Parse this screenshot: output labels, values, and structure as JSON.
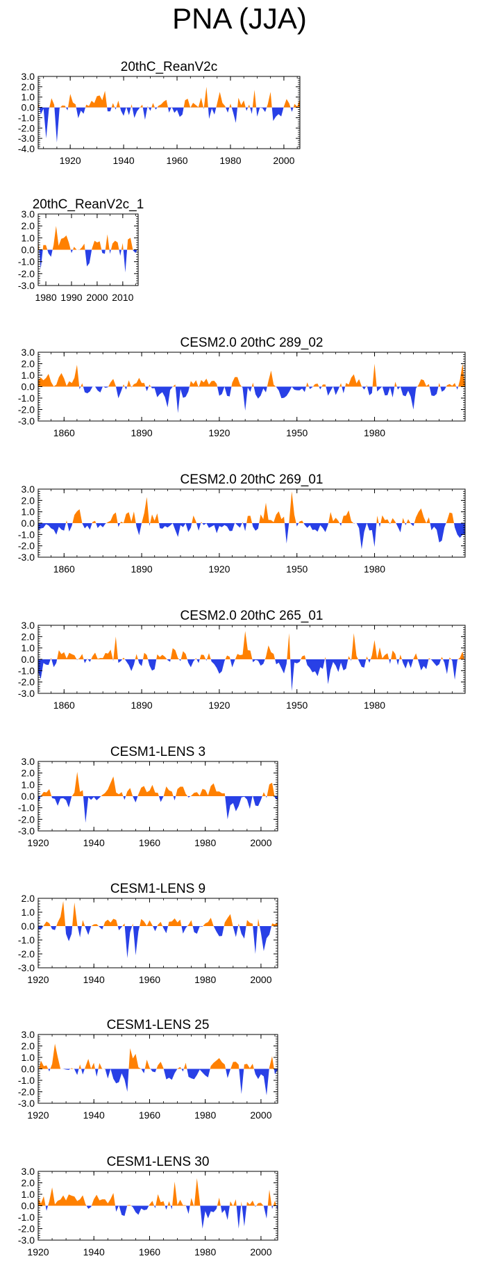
{
  "page": {
    "title": "PNA (JJA)"
  },
  "colors": {
    "positive": "#ff8000",
    "negative": "#2840e6",
    "axis": "#000000",
    "background": "#ffffff"
  },
  "chart_data": [
    {
      "type": "area",
      "title": "20thC_ReanV2c",
      "x_range": [
        1908,
        2006
      ],
      "ylim": [
        -4.0,
        3.0
      ],
      "y_ticks": [
        3.0,
        2.0,
        1.0,
        0.0,
        -1.0,
        -2.0,
        -3.0,
        -4.0
      ],
      "y_tick_labels": [
        "3.0",
        "2.0",
        "1.0",
        "0.0",
        "-1.0",
        "-2.0",
        "-3.0",
        "-4.0"
      ],
      "x_ticks": [
        1920,
        1940,
        1960,
        1980,
        2000
      ],
      "x_tick_labels": [
        "1920",
        "1940",
        "1960",
        "1980",
        "2000"
      ],
      "seed": 11,
      "amp": 1.15,
      "bias": 0.0,
      "anchors": [
        [
          1911,
          -3.0
        ],
        [
          1915,
          -3.4
        ],
        [
          1920,
          1.3
        ],
        [
          1933,
          1.6
        ],
        [
          1948,
          -1.2
        ],
        [
          1971,
          2.0
        ],
        [
          1976,
          1.5
        ],
        [
          1982,
          -1.5
        ],
        [
          1989,
          1.7
        ],
        [
          1995,
          1.5
        ]
      ]
    },
    {
      "type": "area",
      "title": "20thC_ReanV2c_1",
      "x_range": [
        1977,
        2016
      ],
      "ylim": [
        -3.0,
        3.0
      ],
      "y_ticks": [
        3.0,
        2.0,
        1.0,
        0.0,
        -1.0,
        -2.0,
        -3.0
      ],
      "y_tick_labels": [
        "3.0",
        "2.0",
        "1.0",
        "0.0",
        "-1.0",
        "-2.0",
        "-3.0"
      ],
      "x_ticks": [
        1980,
        1990,
        2000,
        2010
      ],
      "x_tick_labels": [
        "1980",
        "1990",
        "2000",
        "2010"
      ],
      "seed": 23,
      "amp": 1.0,
      "bias": 0.0,
      "anchors": [
        [
          1978,
          -1.6
        ],
        [
          1984,
          2.0
        ],
        [
          1988,
          1.2
        ],
        [
          1996,
          -1.4
        ],
        [
          2004,
          1.3
        ],
        [
          2011,
          -1.9
        ],
        [
          2013,
          1.0
        ]
      ]
    },
    {
      "type": "area",
      "title": "CESM2.0 20thC 289_02",
      "x_range": [
        1850,
        2015
      ],
      "ylim": [
        -3.0,
        3.0
      ],
      "y_ticks": [
        3.0,
        2.0,
        1.0,
        0.0,
        -1.0,
        -2.0,
        -3.0
      ],
      "y_tick_labels": [
        "3.0",
        "2.0",
        "1.0",
        "0.0",
        "-1.0",
        "-2.0",
        "-3.0"
      ],
      "x_ticks": [
        1860,
        1890,
        1920,
        1950,
        1980
      ],
      "x_tick_labels": [
        "1860",
        "1890",
        "1920",
        "1950",
        "1980"
      ],
      "seed": 37,
      "amp": 1.0,
      "bias": 0.0,
      "anchors": [
        [
          1865,
          1.9
        ],
        [
          1900,
          -1.8
        ],
        [
          1904,
          -2.3
        ],
        [
          1930,
          -2.1
        ],
        [
          1940,
          1.4
        ],
        [
          1980,
          2.0
        ],
        [
          1995,
          -2.0
        ],
        [
          2014,
          2.0
        ]
      ]
    },
    {
      "type": "area",
      "title": "CESM2.0 20thC 269_01",
      "x_range": [
        1850,
        2015
      ],
      "ylim": [
        -3.0,
        3.0
      ],
      "y_ticks": [
        3.0,
        2.0,
        1.0,
        0.0,
        -1.0,
        -2.0,
        -3.0
      ],
      "y_tick_labels": [
        "3.0",
        "2.0",
        "1.0",
        "0.0",
        "-1.0",
        "-2.0",
        "-3.0"
      ],
      "x_ticks": [
        1860,
        1890,
        1920,
        1950,
        1980
      ],
      "x_tick_labels": [
        "1860",
        "1890",
        "1920",
        "1950",
        "1980"
      ],
      "seed": 53,
      "amp": 1.05,
      "bias": 0.0,
      "anchors": [
        [
          1892,
          2.3
        ],
        [
          1938,
          1.8
        ],
        [
          1948,
          2.8
        ],
        [
          1946,
          -1.8
        ],
        [
          1975,
          -2.3
        ],
        [
          1980,
          -2.1
        ],
        [
          2005,
          -1.7
        ]
      ]
    },
    {
      "type": "area",
      "title": "CESM2.0 20thC 265_01",
      "x_range": [
        1850,
        2015
      ],
      "ylim": [
        -3.0,
        3.0
      ],
      "y_ticks": [
        3.0,
        2.0,
        1.0,
        0.0,
        -1.0,
        -2.0,
        -3.0
      ],
      "y_tick_labels": [
        "3.0",
        "2.0",
        "1.0",
        "0.0",
        "-1.0",
        "-2.0",
        "-3.0"
      ],
      "x_ticks": [
        1860,
        1890,
        1920,
        1950,
        1980
      ],
      "x_tick_labels": [
        "1860",
        "1890",
        "1920",
        "1950",
        "1980"
      ],
      "seed": 71,
      "amp": 1.1,
      "bias": 0.0,
      "anchors": [
        [
          1880,
          2.0
        ],
        [
          1930,
          2.5
        ],
        [
          1948,
          -2.8
        ],
        [
          1947,
          2.3
        ],
        [
          1962,
          -2.2
        ],
        [
          1972,
          2.3
        ],
        [
          1980,
          1.7
        ],
        [
          2011,
          -1.8
        ]
      ]
    },
    {
      "type": "area",
      "title": "CESM1-LENS 3",
      "x_range": [
        1920,
        2006
      ],
      "ylim": [
        -3.0,
        3.0
      ],
      "y_ticks": [
        3.0,
        2.0,
        1.0,
        0.0,
        -1.0,
        -2.0,
        -3.0
      ],
      "y_tick_labels": [
        "3.0",
        "2.0",
        "1.0",
        "0.0",
        "-1.0",
        "-2.0",
        "-3.0"
      ],
      "x_ticks": [
        1920,
        1940,
        1960,
        1980,
        2000
      ],
      "x_tick_labels": [
        "1920",
        "1940",
        "1960",
        "1980",
        "2000"
      ],
      "seed": 89,
      "amp": 1.0,
      "bias": 0.15,
      "anchors": [
        [
          1934,
          2.1
        ],
        [
          1937,
          -2.3
        ],
        [
          1988,
          -2.0
        ],
        [
          1991,
          -1.3
        ],
        [
          1996,
          -1.1
        ]
      ]
    },
    {
      "type": "area",
      "title": "CESM1-LENS 9",
      "x_range": [
        1920,
        2006
      ],
      "ylim": [
        -3.0,
        2.0
      ],
      "y_ticks": [
        2.0,
        1.0,
        0.0,
        -1.0,
        -2.0,
        -3.0
      ],
      "y_tick_labels": [
        "2.0",
        "1.0",
        "0.0",
        "-1.0",
        "-2.0",
        "-3.0"
      ],
      "x_ticks": [
        1920,
        1940,
        1960,
        1980,
        2000
      ],
      "x_tick_labels": [
        "1920",
        "1940",
        "1960",
        "1980",
        "2000"
      ],
      "seed": 101,
      "amp": 0.95,
      "bias": 0.0,
      "anchors": [
        [
          1929,
          1.8
        ],
        [
          1933,
          1.7
        ],
        [
          1952,
          -2.3
        ],
        [
          1955,
          -2.1
        ],
        [
          1998,
          -2.0
        ],
        [
          2001,
          -1.8
        ]
      ]
    },
    {
      "type": "area",
      "title": "CESM1-LENS 25",
      "x_range": [
        1920,
        2006
      ],
      "ylim": [
        -3.0,
        3.0
      ],
      "y_ticks": [
        3.0,
        2.0,
        1.0,
        0.0,
        -1.0,
        -2.0,
        -3.0
      ],
      "y_tick_labels": [
        "3.0",
        "2.0",
        "1.0",
        "0.0",
        "-1.0",
        "-2.0",
        "-3.0"
      ],
      "x_ticks": [
        1920,
        1940,
        1960,
        1980,
        2000
      ],
      "x_tick_labels": [
        "1920",
        "1940",
        "1960",
        "1980",
        "2000"
      ],
      "seed": 131,
      "amp": 1.0,
      "bias": 0.0,
      "anchors": [
        [
          1926,
          2.2
        ],
        [
          1952,
          -2.0
        ],
        [
          1953,
          1.8
        ],
        [
          1993,
          -2.2
        ],
        [
          2002,
          -2.3
        ],
        [
          2004,
          1.1
        ]
      ]
    },
    {
      "type": "area",
      "title": "CESM1-LENS 30",
      "x_range": [
        1920,
        2006
      ],
      "ylim": [
        -3.0,
        3.0
      ],
      "y_ticks": [
        3.0,
        2.0,
        1.0,
        0.0,
        -1.0,
        -2.0,
        -3.0
      ],
      "y_tick_labels": [
        "3.0",
        "2.0",
        "1.0",
        "0.0",
        "-1.0",
        "-2.0",
        "-3.0"
      ],
      "x_ticks": [
        1920,
        1940,
        1960,
        1980,
        2000
      ],
      "x_tick_labels": [
        "1920",
        "1940",
        "1960",
        "1980",
        "2000"
      ],
      "seed": 157,
      "amp": 1.05,
      "bias": 0.0,
      "anchors": [
        [
          1925,
          1.6
        ],
        [
          1969,
          2.1
        ],
        [
          1977,
          2.4
        ],
        [
          1979,
          -2.0
        ],
        [
          1992,
          -2.0
        ],
        [
          1994,
          -1.8
        ],
        [
          2003,
          1.4
        ]
      ]
    }
  ]
}
